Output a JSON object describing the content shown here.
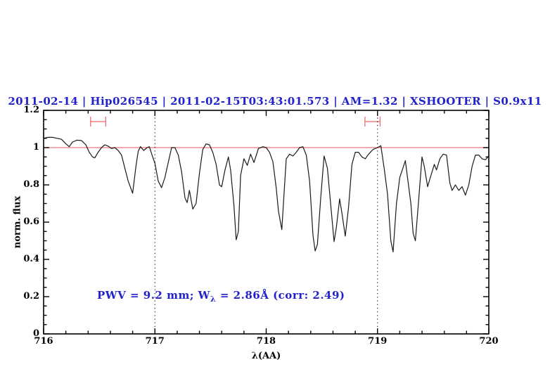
{
  "figure": {
    "title": "2011-02-14 | Hip026545 | 2011-02-15T03:43:01.573 | AM=1.32 | XSHOOTER | S0.9x11",
    "title_color": "#2222cc"
  },
  "annotation": {
    "prefix": "PWV = 9.2 mm; W",
    "sub": "λ",
    "suffix": " = 2.86Å (corr: 2.49)",
    "color": "#2222cc"
  },
  "chart_data": {
    "type": "line",
    "title": "2011-02-14 | Hip026545 | 2011-02-15T03:43:01.573 | AM=1.32 | XSHOOTER | S0.9x11",
    "xlabel": "λ(AA)",
    "ylabel": "norm. flux",
    "xlim": [
      716,
      720
    ],
    "ylim": [
      0,
      1.2
    ],
    "x_major_ticks": [
      716,
      717,
      718,
      719,
      720
    ],
    "x_tick_labels": [
      "716",
      "717",
      "718",
      "719",
      "720"
    ],
    "x_minor_step": 0.2,
    "y_major_ticks": [
      0,
      0.2,
      0.4,
      0.6,
      0.8,
      1.0,
      1.2
    ],
    "y_tick_labels": [
      "0",
      "0.2",
      "0.4",
      "0.6",
      "0.8",
      "1",
      "1.2"
    ],
    "y_minor_step": 0.05,
    "grid": "off",
    "dotted_vlines_x": [
      717,
      719
    ],
    "reference_hline_y": 1.0,
    "line_color": "#1a1a1a",
    "accent_red": "#ee7777",
    "frame_color": "#000000",
    "range_markers": [
      {
        "x_center": 716.49,
        "x_halfwidth": 0.068,
        "y": 1.14
      },
      {
        "x_center": 718.955,
        "x_halfwidth": 0.068,
        "y": 1.14
      }
    ],
    "series": [
      {
        "name": "normalized telluric spectrum",
        "x": [
          716.0,
          716.04,
          716.08,
          716.12,
          716.16,
          716.2,
          716.23,
          716.26,
          716.3,
          716.34,
          716.38,
          716.41,
          716.44,
          716.46,
          716.49,
          716.52,
          716.55,
          716.58,
          716.61,
          716.64,
          716.67,
          716.7,
          716.73,
          716.76,
          716.8,
          716.83,
          716.85,
          716.87,
          716.9,
          716.93,
          716.95,
          716.98,
          717.0,
          717.03,
          717.06,
          717.09,
          717.12,
          717.15,
          717.18,
          717.21,
          717.24,
          717.27,
          717.29,
          717.31,
          717.34,
          717.37,
          717.4,
          717.43,
          717.46,
          717.49,
          717.52,
          717.55,
          717.58,
          717.6,
          717.63,
          717.66,
          717.68,
          717.71,
          717.73,
          717.75,
          717.77,
          717.8,
          717.83,
          717.86,
          717.89,
          717.93,
          717.97,
          718.0,
          718.03,
          718.06,
          718.09,
          718.11,
          718.14,
          718.16,
          718.18,
          718.21,
          718.24,
          718.27,
          718.3,
          718.33,
          718.36,
          718.39,
          718.42,
          718.44,
          718.46,
          718.49,
          718.52,
          718.55,
          718.58,
          718.61,
          718.63,
          718.66,
          718.68,
          718.71,
          718.74,
          718.77,
          718.8,
          718.83,
          718.86,
          718.89,
          718.92,
          718.96,
          719.0,
          719.03,
          719.06,
          719.09,
          719.12,
          719.14,
          719.17,
          719.2,
          719.22,
          719.25,
          719.28,
          719.3,
          719.32,
          719.34,
          719.37,
          719.4,
          719.42,
          719.45,
          719.47,
          719.49,
          719.51,
          719.53,
          719.56,
          719.59,
          719.62,
          719.65,
          719.67,
          719.7,
          719.73,
          719.76,
          719.79,
          719.82,
          719.85,
          719.88,
          719.91,
          719.94,
          719.97,
          720.0
        ],
        "y": [
          1.05,
          1.055,
          1.055,
          1.05,
          1.045,
          1.02,
          1.005,
          1.03,
          1.04,
          1.038,
          1.015,
          0.975,
          0.95,
          0.945,
          0.975,
          1.0,
          1.015,
          1.008,
          0.995,
          1.0,
          0.985,
          0.96,
          0.89,
          0.82,
          0.755,
          0.9,
          0.98,
          1.005,
          0.985,
          1.0,
          1.005,
          0.95,
          0.915,
          0.82,
          0.785,
          0.84,
          0.92,
          1.0,
          1.0,
          0.96,
          0.87,
          0.73,
          0.705,
          0.77,
          0.67,
          0.7,
          0.86,
          0.99,
          1.02,
          1.015,
          0.975,
          0.91,
          0.8,
          0.79,
          0.88,
          0.95,
          0.88,
          0.69,
          0.505,
          0.55,
          0.85,
          0.94,
          0.905,
          0.965,
          0.92,
          0.995,
          1.005,
          1.0,
          0.975,
          0.925,
          0.785,
          0.66,
          0.56,
          0.75,
          0.94,
          0.965,
          0.955,
          0.975,
          1.0,
          1.005,
          0.96,
          0.82,
          0.53,
          0.445,
          0.48,
          0.73,
          0.955,
          0.89,
          0.69,
          0.495,
          0.57,
          0.725,
          0.65,
          0.525,
          0.68,
          0.91,
          0.975,
          0.975,
          0.95,
          0.94,
          0.965,
          0.99,
          1.0,
          1.01,
          0.89,
          0.75,
          0.5,
          0.44,
          0.7,
          0.84,
          0.875,
          0.93,
          0.79,
          0.7,
          0.54,
          0.5,
          0.72,
          0.95,
          0.9,
          0.79,
          0.83,
          0.87,
          0.91,
          0.88,
          0.94,
          0.965,
          0.96,
          0.81,
          0.77,
          0.8,
          0.77,
          0.79,
          0.745,
          0.8,
          0.9,
          0.96,
          0.96,
          0.94,
          0.935,
          0.955
        ]
      }
    ]
  }
}
